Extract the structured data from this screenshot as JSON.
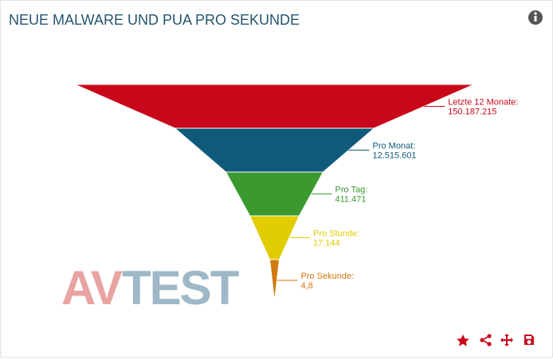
{
  "chart_data": {
    "type": "funnel",
    "title": "NEUE MALWARE UND PUA PRO SEKUNDE",
    "categories": [
      "Letzte 12 Monate:",
      "Pro Monat:",
      "Pro Tag:",
      "Pro Stunde:",
      "Pro Sekunde:"
    ],
    "values": [
      150187215,
      12515601,
      411471,
      17144,
      4.8
    ],
    "value_labels": [
      "150.187.215",
      "12.515.601",
      "411.471",
      "17.144",
      "4,8"
    ],
    "colors": [
      "#c8081a",
      "#0f5a7a",
      "#3a9a30",
      "#e0cc00",
      "#d07a10"
    ]
  },
  "logo": {
    "left": "AV",
    "right": "TEST"
  }
}
